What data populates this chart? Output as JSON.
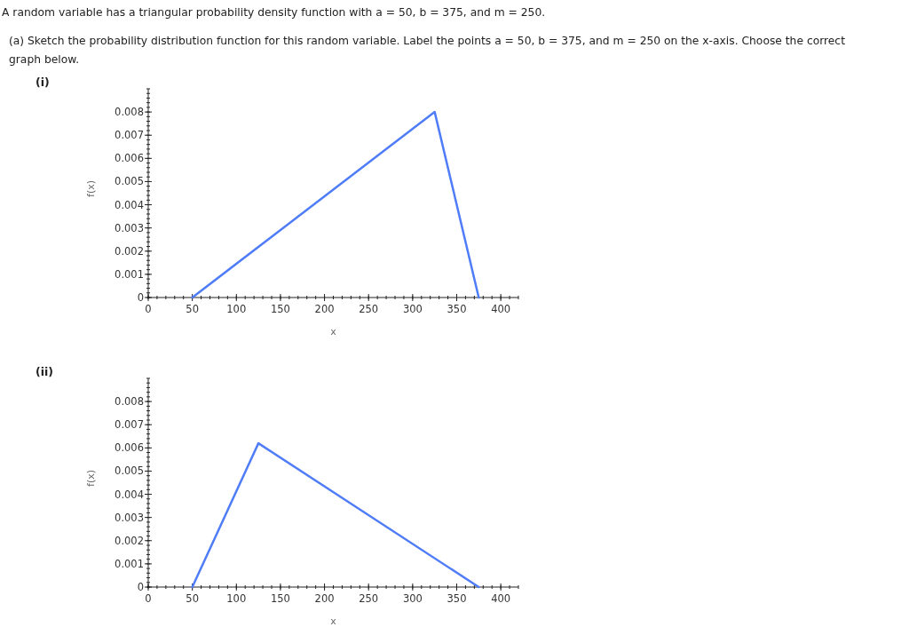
{
  "chart_data": [
    {
      "type": "line",
      "title": "(i)",
      "xlabel": "x",
      "ylabel": "f(x)",
      "annotations": [
        "A random variable has a triangular probability density function with a = 50, b = 375, and m = 250.",
        "(a) Sketch the probability distribution function for this random variable. Label the points a = 50, b = 375, and m = 250 on the x-axis. Choose the correct graph below."
      ],
      "series": [
        {
          "color": "#4f7cf7",
          "x": [
            50,
            325,
            375
          ],
          "values": [
            0,
            0.008,
            0
          ]
        }
      ],
      "xlim": [
        0,
        420
      ],
      "xticks": [
        0,
        50,
        100,
        150,
        200,
        250,
        300,
        350,
        400
      ],
      "ylim": [
        0,
        0.009
      ],
      "yticks": [
        0,
        0.001,
        0.002,
        0.003,
        0.004,
        0.005,
        0.006,
        0.007,
        0.008
      ],
      "grid": false,
      "marker": "none"
    },
    {
      "type": "line",
      "title": "(ii)",
      "xlabel": "x",
      "ylabel": "f(x)",
      "series": [
        {
          "color": "#4f7cf7",
          "x": [
            50,
            125,
            375
          ],
          "values": [
            0,
            0.0062,
            0
          ]
        }
      ],
      "xlim": [
        0,
        420
      ],
      "xticks": [
        0,
        50,
        100,
        150,
        200,
        250,
        300,
        350,
        400
      ],
      "ylim": [
        0,
        0.009
      ],
      "yticks": [
        0,
        0.001,
        0.002,
        0.003,
        0.004,
        0.005,
        0.006,
        0.007,
        0.008
      ],
      "grid": false,
      "marker": "none"
    }
  ]
}
